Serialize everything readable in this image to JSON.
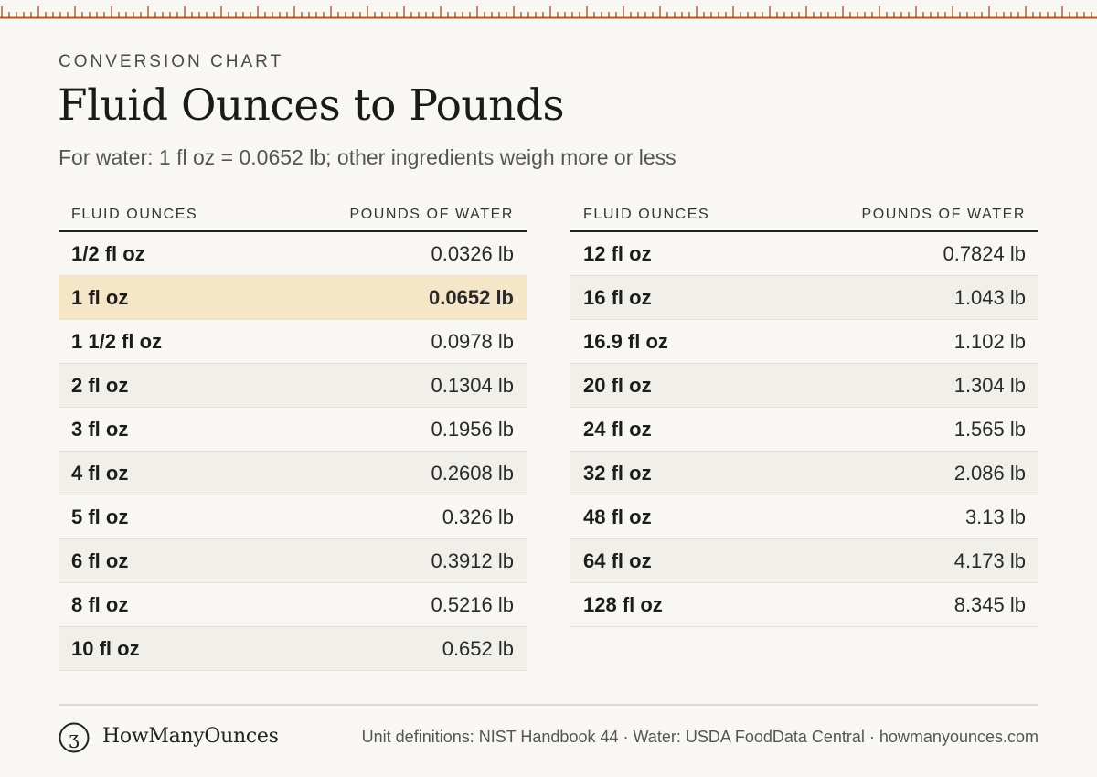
{
  "header": {
    "eyebrow": "CONVERSION CHART",
    "title": "Fluid Ounces to Pounds",
    "subtitle": "For water: 1 fl oz = 0.0652 lb; other ingredients weigh more or less"
  },
  "table": {
    "col_oz": "FLUID OUNCES",
    "col_lb": "POUNDS OF WATER",
    "highlight_color": "#f4e6c6",
    "left_rows": [
      {
        "oz": "1/2 fl oz",
        "lb": "0.0326 lb"
      },
      {
        "oz": "1 fl oz",
        "lb": "0.0652 lb",
        "highlight": true
      },
      {
        "oz": "1 1/2 fl oz",
        "lb": "0.0978 lb"
      },
      {
        "oz": "2 fl oz",
        "lb": "0.1304 lb"
      },
      {
        "oz": "3 fl oz",
        "lb": "0.1956 lb"
      },
      {
        "oz": "4 fl oz",
        "lb": "0.2608 lb"
      },
      {
        "oz": "5 fl oz",
        "lb": "0.326 lb"
      },
      {
        "oz": "6 fl oz",
        "lb": "0.3912 lb"
      },
      {
        "oz": "8 fl oz",
        "lb": "0.5216 lb"
      },
      {
        "oz": "10 fl oz",
        "lb": "0.652 lb"
      }
    ],
    "right_rows": [
      {
        "oz": "12 fl oz",
        "lb": "0.7824 lb"
      },
      {
        "oz": "16 fl oz",
        "lb": "1.043 lb"
      },
      {
        "oz": "16.9 fl oz",
        "lb": "1.102 lb"
      },
      {
        "oz": "20 fl oz",
        "lb": "1.304 lb"
      },
      {
        "oz": "24 fl oz",
        "lb": "1.565 lb"
      },
      {
        "oz": "32 fl oz",
        "lb": "2.086 lb"
      },
      {
        "oz": "48 fl oz",
        "lb": "3.13 lb"
      },
      {
        "oz": "64 fl oz",
        "lb": "4.173 lb"
      },
      {
        "oz": "128 fl oz",
        "lb": "8.345 lb"
      }
    ]
  },
  "footer": {
    "logo_glyph": "ʒ",
    "brand": "HowManyOunces",
    "sources": "Unit definitions: NIST Handbook 44 · Water: USDA FoodData Central · howmanyounces.com"
  },
  "colors": {
    "ruler": "#b5541c",
    "accent_highlight": "#f4e6c6"
  }
}
